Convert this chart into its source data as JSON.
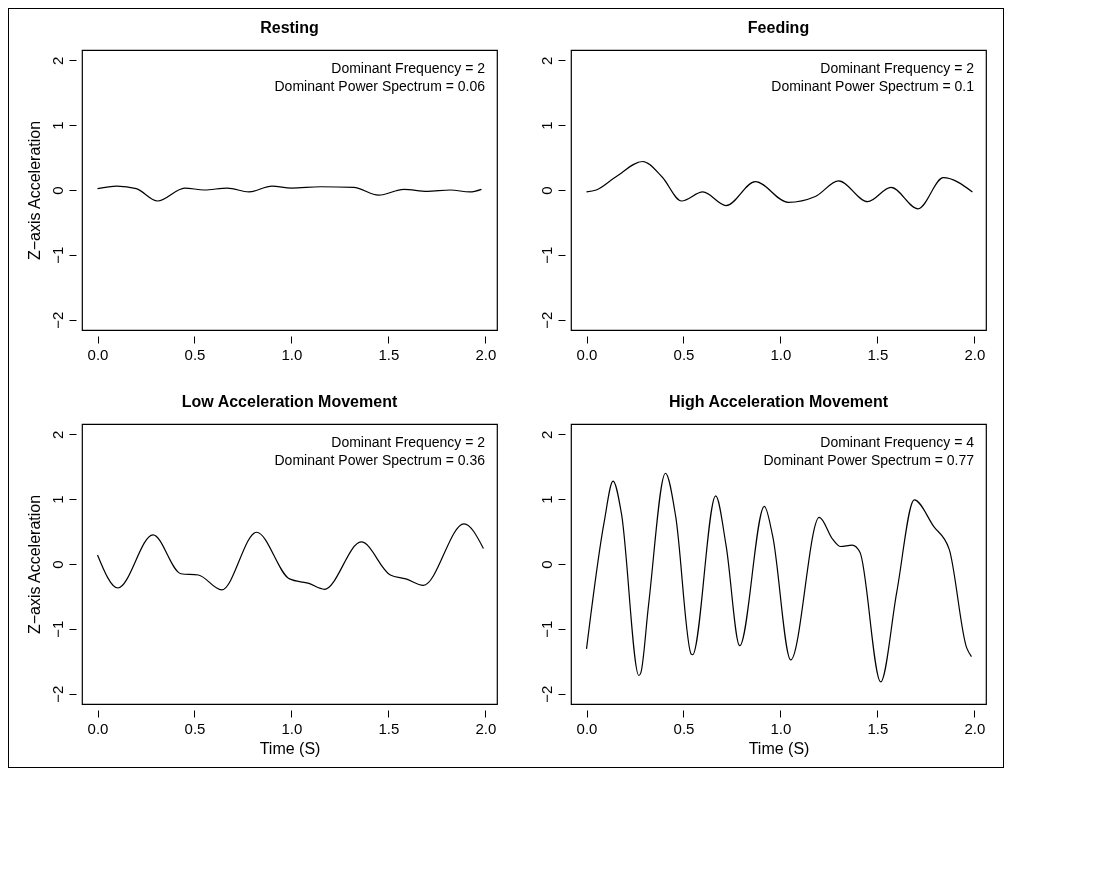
{
  "chart_data": [
    {
      "type": "line",
      "title": "Resting",
      "ylabel": "Z−axis Acceleration",
      "annotations": [
        "Dominant Frequency = 2",
        "Dominant Power Spectrum = 0.06"
      ],
      "xlim": [
        -0.08,
        2.06
      ],
      "ylim": [
        -2.16,
        2.16
      ],
      "xticks": [
        {
          "value": 0,
          "label": "0.0"
        },
        {
          "value": 0.5,
          "label": "0.5"
        },
        {
          "value": 1,
          "label": "1.0"
        },
        {
          "value": 1.5,
          "label": "1.5"
        },
        {
          "value": 2,
          "label": "2.0"
        }
      ],
      "yticks": [
        -2,
        -1,
        0,
        1,
        2
      ],
      "series": [
        {
          "color": "#000000",
          "x": [
            0,
            0.1,
            0.2,
            0.31,
            0.45,
            0.55,
            0.67,
            0.78,
            0.9,
            1.0,
            1.15,
            1.32,
            1.45,
            1.58,
            1.7,
            1.82,
            1.92,
            1.98
          ],
          "values": [
            0.02,
            0.06,
            0.02,
            -0.17,
            0.03,
            0.0,
            0.03,
            -0.03,
            0.06,
            0.03,
            0.05,
            0.04,
            -0.08,
            0.01,
            -0.02,
            0.0,
            -0.03,
            0.01
          ]
        }
      ]
    },
    {
      "type": "line",
      "title": "Feeding",
      "annotations": [
        "Dominant Frequency = 2",
        "Dominant Power Spectrum = 0.1"
      ],
      "xlim": [
        -0.08,
        2.06
      ],
      "ylim": [
        -2.16,
        2.16
      ],
      "xticks": [
        {
          "value": 0,
          "label": "0.0"
        },
        {
          "value": 0.5,
          "label": "0.5"
        },
        {
          "value": 1,
          "label": "1.0"
        },
        {
          "value": 1.5,
          "label": "1.5"
        },
        {
          "value": 2,
          "label": "2.0"
        }
      ],
      "yticks": [
        -2,
        -1,
        0,
        1,
        2
      ],
      "series": [
        {
          "color": "#000000",
          "x": [
            0,
            0.05,
            0.15,
            0.29,
            0.39,
            0.49,
            0.6,
            0.72,
            0.87,
            1.04,
            1.18,
            1.3,
            1.45,
            1.57,
            1.71,
            1.84,
            1.99
          ],
          "values": [
            -0.03,
            0,
            0.2,
            0.44,
            0.2,
            -0.17,
            -0.03,
            -0.24,
            0.13,
            -0.19,
            -0.1,
            0.14,
            -0.18,
            0.04,
            -0.29,
            0.19,
            -0.03
          ]
        }
      ]
    },
    {
      "type": "line",
      "title": "Low Acceleration Movement",
      "xlabel": "Time (S)",
      "ylabel": "Z−axis Acceleration",
      "annotations": [
        "Dominant Frequency = 2",
        "Dominant Power Spectrum = 0.36"
      ],
      "xlim": [
        -0.08,
        2.06
      ],
      "ylim": [
        -2.16,
        2.16
      ],
      "xticks": [
        {
          "value": 0,
          "label": "0.0"
        },
        {
          "value": 0.5,
          "label": "0.5"
        },
        {
          "value": 1,
          "label": "1.0"
        },
        {
          "value": 1.5,
          "label": "1.5"
        },
        {
          "value": 2,
          "label": "2.0"
        }
      ],
      "yticks": [
        -2,
        -1,
        0,
        1,
        2
      ],
      "series": [
        {
          "color": "#000000",
          "x": [
            0,
            0.105,
            0.286,
            0.43,
            0.52,
            0.64,
            0.82,
            0.99,
            1.09,
            1.17,
            1.36,
            1.51,
            1.59,
            1.68,
            1.89,
            1.99
          ],
          "values": [
            0.14,
            -0.37,
            0.45,
            -0.15,
            -0.17,
            -0.4,
            0.49,
            -0.23,
            -0.3,
            -0.39,
            0.34,
            -0.17,
            -0.23,
            -0.33,
            0.62,
            0.24
          ]
        }
      ]
    },
    {
      "type": "line",
      "title": "High Acceleration Movement",
      "xlabel": "Time (S)",
      "annotations": [
        "Dominant Frequency = 4",
        "Dominant Power Spectrum = 0.77"
      ],
      "xlim": [
        -0.08,
        2.06
      ],
      "ylim": [
        -2.16,
        2.16
      ],
      "xticks": [
        {
          "value": 0,
          "label": "0.0"
        },
        {
          "value": 0.5,
          "label": "0.5"
        },
        {
          "value": 1,
          "label": "1.0"
        },
        {
          "value": 1.5,
          "label": "1.5"
        },
        {
          "value": 2,
          "label": "2.0"
        }
      ],
      "yticks": [
        -2,
        -1,
        0,
        1,
        2
      ],
      "series": [
        {
          "color": "#000000",
          "x": [
            0,
            0.09,
            0.137,
            0.18,
            0.27,
            0.28,
            0.32,
            0.407,
            0.46,
            0.54,
            0.547,
            0.666,
            0.72,
            0.79,
            0.917,
            0.96,
            1.053,
            1.2,
            1.27,
            1.31,
            1.37,
            1.41,
            1.517,
            1.6,
            1.69,
            1.79,
            1.87,
            1.96,
            1.985
          ],
          "values": [
            -1.31,
            0.63,
            1.28,
            0.78,
            -1.72,
            -1.68,
            -0.63,
            1.4,
            0.73,
            -1.39,
            -1.4,
            1.05,
            0.28,
            -1.26,
            0.89,
            0.43,
            -1.48,
            0.72,
            0.38,
            0.27,
            0.29,
            0.18,
            -1.82,
            -0.43,
            0.99,
            0.58,
            0.23,
            -1.29,
            -1.43
          ]
        }
      ]
    }
  ]
}
